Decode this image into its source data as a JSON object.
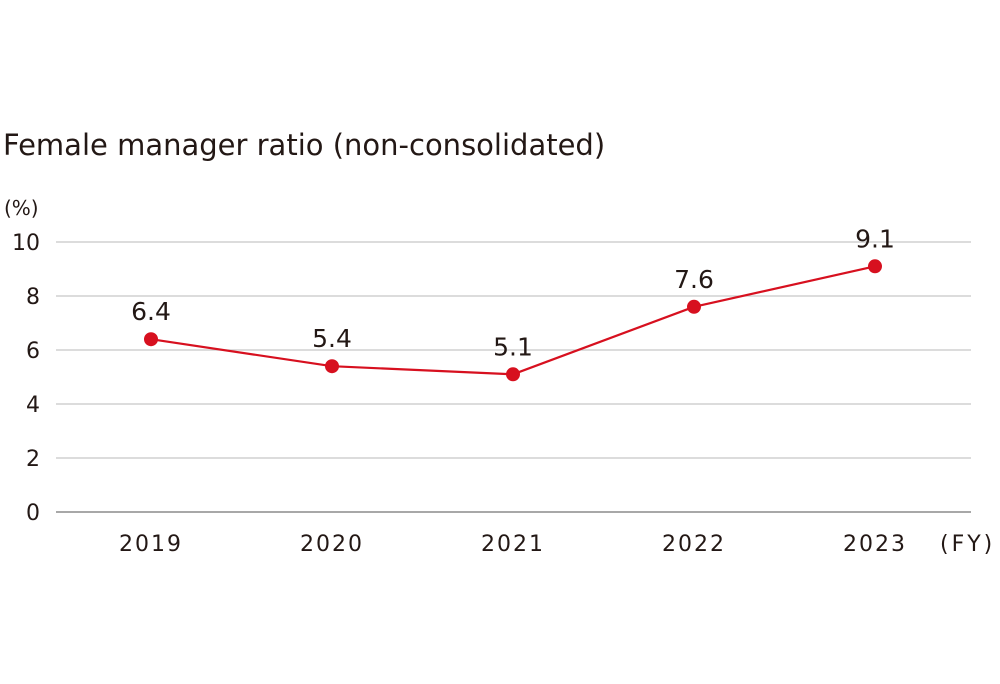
{
  "chart_data": {
    "type": "line",
    "title": "Female manager ratio (non-consolidated)",
    "ylabel": "(%)",
    "xlabel": "(FY)",
    "ylim": [
      0,
      10
    ],
    "yticks": [
      0,
      2,
      4,
      6,
      8,
      10
    ],
    "grid": true,
    "categories": [
      "2019",
      "2020",
      "2021",
      "2022",
      "2023"
    ],
    "series": [
      {
        "name": "Female manager ratio",
        "values": [
          6.4,
          5.4,
          5.1,
          7.6,
          9.1
        ],
        "labels": [
          "6.4",
          "5.4",
          "5.1",
          "7.6",
          "9.1"
        ],
        "color": "#d7101f"
      }
    ],
    "colors": {
      "grid": "#c8c8c8",
      "axis": "#8c8c8c",
      "text": "#231815"
    }
  }
}
